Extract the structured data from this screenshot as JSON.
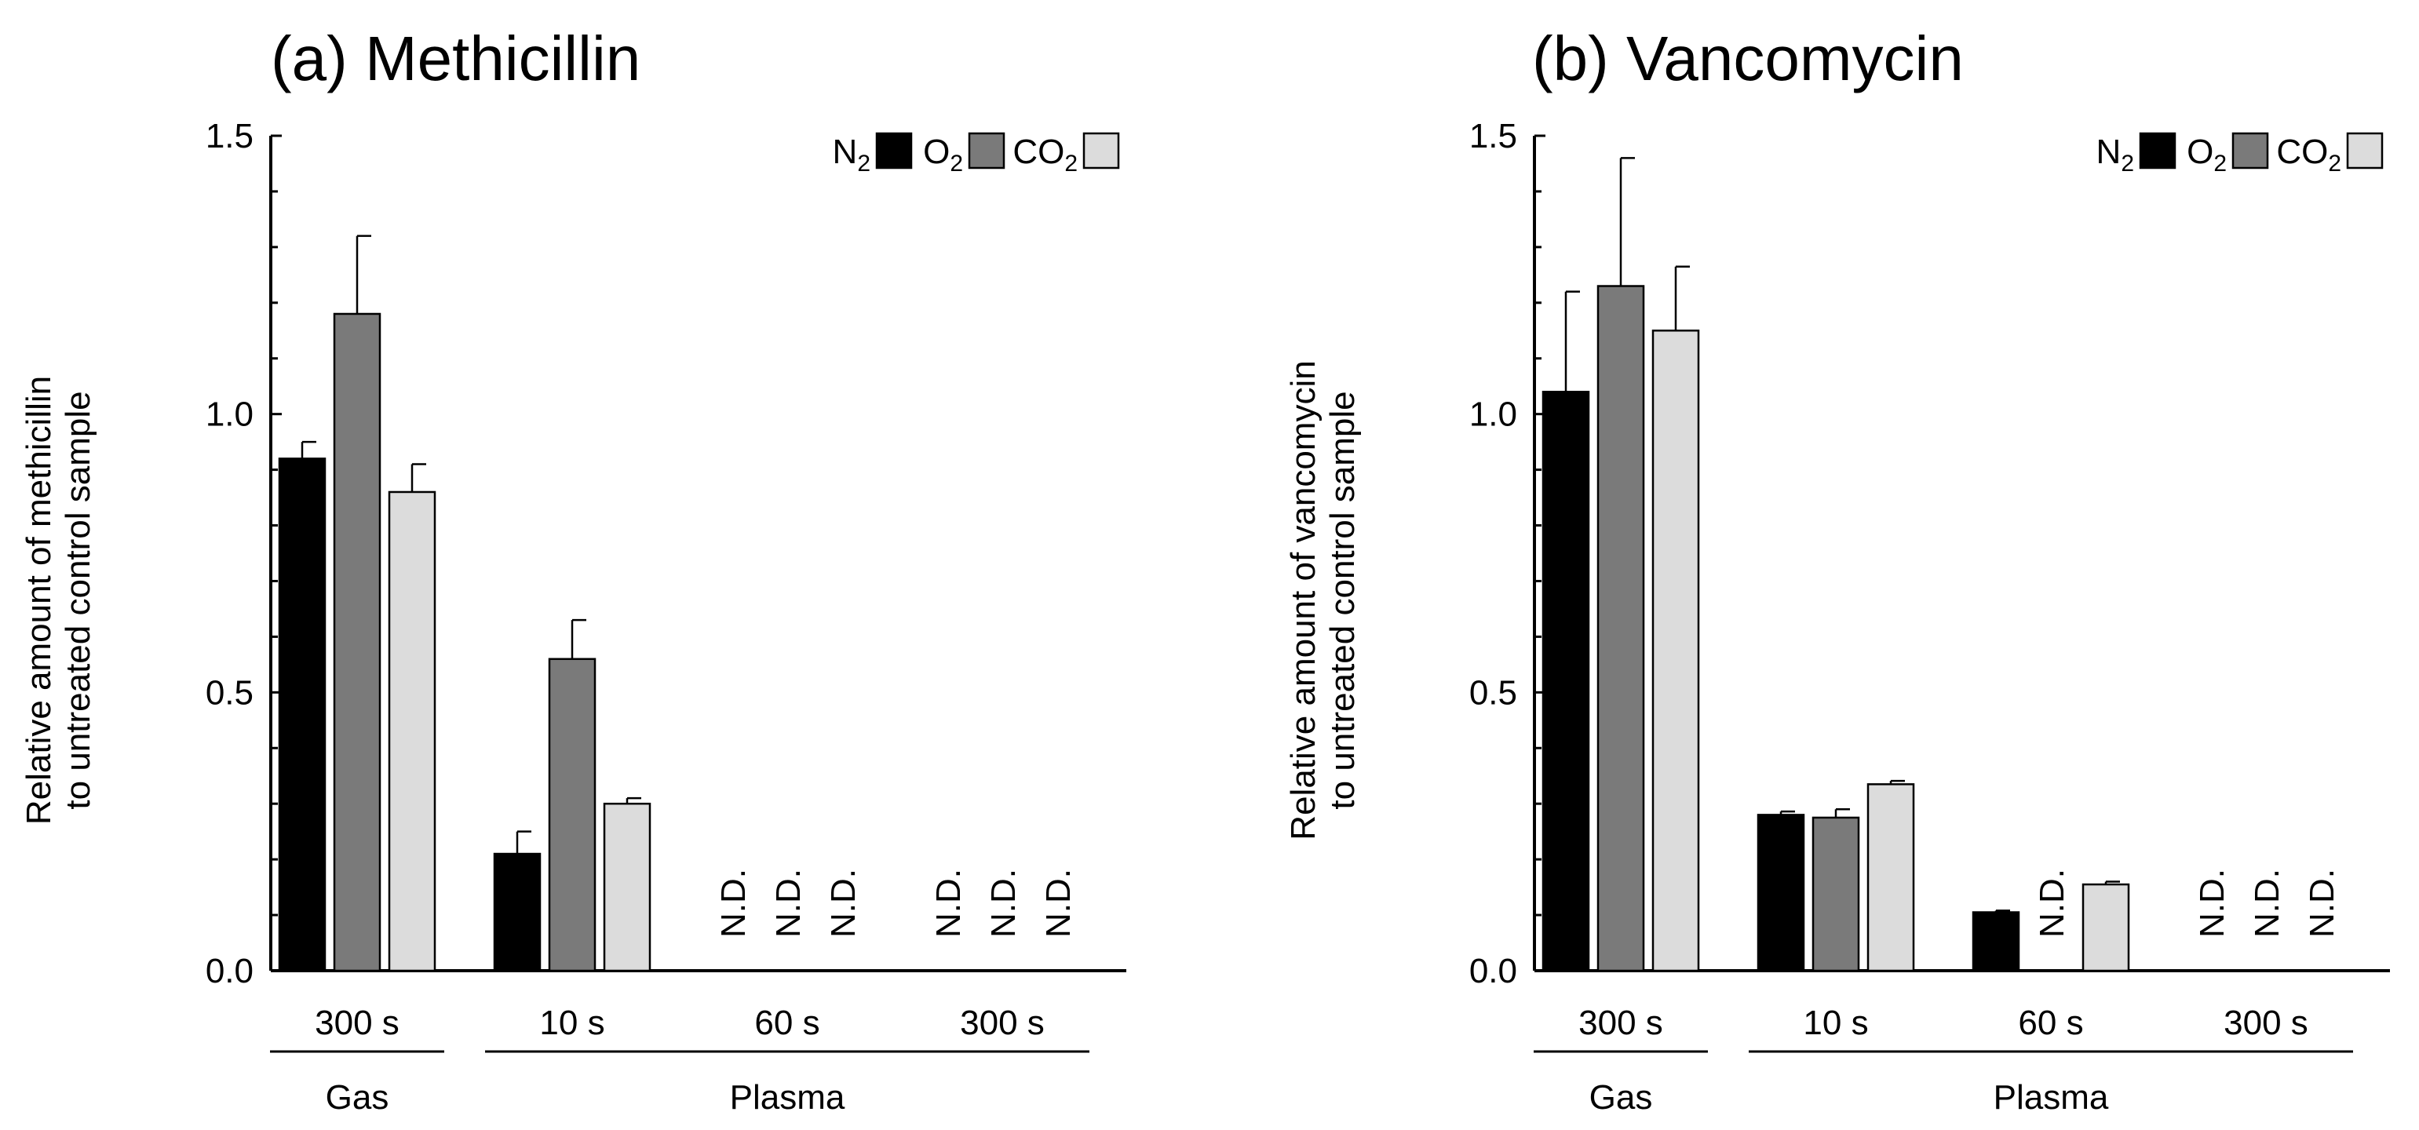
{
  "chart_data": [
    {
      "type": "bar",
      "title": "(a) Methicillin",
      "ylabel_lines": [
        "Relative amount of methicillin",
        "to untreated control sample"
      ],
      "ylim": [
        0,
        1.5
      ],
      "yticks": [
        "0.0",
        "0.5",
        "1.0",
        "1.5"
      ],
      "ytick_values": [
        0,
        0.5,
        1.0,
        1.5
      ],
      "legend": [
        {
          "base": "N",
          "sub": "2",
          "color": "#000000"
        },
        {
          "base": "O",
          "sub": "2",
          "color": "#7a7a7a"
        },
        {
          "base": "CO",
          "sub": "2",
          "color": "#dcdcdc"
        }
      ],
      "legend_position": "top-right",
      "categories": [
        "300 s",
        "10 s",
        "60 s",
        "300 s"
      ],
      "groups": [
        {
          "label": "Gas",
          "span": [
            0,
            0
          ]
        },
        {
          "label": "Plasma",
          "span": [
            1,
            3
          ]
        }
      ],
      "series": [
        {
          "name": "N2",
          "values": [
            0.92,
            0.21,
            null,
            null
          ],
          "errors": [
            0.03,
            0.04,
            null,
            null
          ]
        },
        {
          "name": "O2",
          "values": [
            1.18,
            0.56,
            null,
            null
          ],
          "errors": [
            0.14,
            0.07,
            null,
            null
          ]
        },
        {
          "name": "CO2",
          "values": [
            0.86,
            0.3,
            null,
            null
          ],
          "errors": [
            0.05,
            0.01,
            null,
            null
          ]
        }
      ],
      "nd_label": "N.D."
    },
    {
      "type": "bar",
      "title": "(b) Vancomycin",
      "ylabel_lines": [
        "Relative amount of vancomycin",
        "to untreated control sample"
      ],
      "ylim": [
        0,
        1.5
      ],
      "yticks": [
        "0.0",
        "0.5",
        "1.0",
        "1.5"
      ],
      "ytick_values": [
        0,
        0.5,
        1.0,
        1.5
      ],
      "legend": [
        {
          "base": "N",
          "sub": "2",
          "color": "#000000"
        },
        {
          "base": "O",
          "sub": "2",
          "color": "#7a7a7a"
        },
        {
          "base": "CO",
          "sub": "2",
          "color": "#dcdcdc"
        }
      ],
      "legend_position": "top-right",
      "categories": [
        "300 s",
        "10 s",
        "60 s",
        "300 s"
      ],
      "groups": [
        {
          "label": "Gas",
          "span": [
            0,
            0
          ]
        },
        {
          "label": "Plasma",
          "span": [
            1,
            3
          ]
        }
      ],
      "series": [
        {
          "name": "N2",
          "values": [
            1.04,
            0.28,
            0.105,
            null
          ],
          "errors": [
            0.18,
            0.006,
            0.003,
            null
          ]
        },
        {
          "name": "O2",
          "values": [
            1.23,
            0.275,
            null,
            null
          ],
          "errors": [
            0.23,
            0.015,
            null,
            null
          ]
        },
        {
          "name": "CO2",
          "values": [
            1.15,
            0.335,
            0.155,
            null
          ],
          "errors": [
            0.115,
            0.006,
            0.005,
            null
          ]
        }
      ],
      "nd_label": "N.D."
    }
  ]
}
